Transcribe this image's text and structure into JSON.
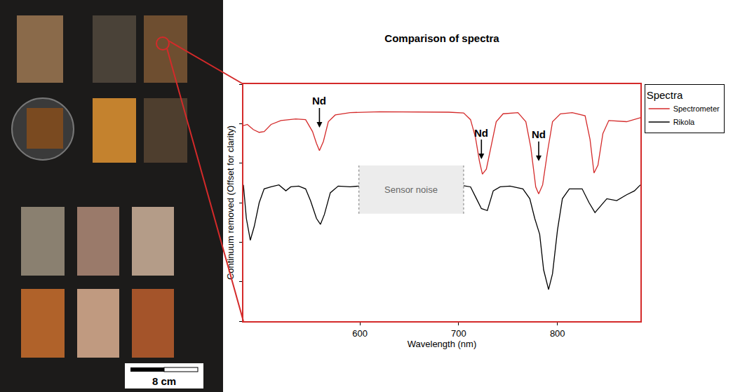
{
  "chart_data": {
    "type": "line",
    "title": "Comparison of spectra",
    "x_label": "Wavelength (nm)",
    "y_label": "Continuum removed (Offset for clarity)",
    "xlim": [
      482,
      884
    ],
    "xticks": [
      600,
      700,
      800
    ],
    "ylim": [
      0,
      6
    ],
    "yticks": [
      0,
      1,
      2,
      3,
      4,
      5,
      6
    ],
    "tick_labels": "x",
    "grid": false,
    "legend": "right",
    "legend_title": "Spectra",
    "series": [
      {
        "name": "Spectrometer",
        "color": "#d42a2a",
        "line_style": "solid",
        "x": [
          482,
          486,
          492,
          498,
          503,
          510,
          520,
          535,
          545,
          552,
          556,
          559,
          563,
          568,
          575,
          590,
          620,
          660,
          690,
          705,
          712,
          717,
          721,
          724,
          728,
          733,
          738,
          745,
          760,
          768,
          773,
          778,
          781,
          785,
          790,
          795,
          803,
          815,
          828,
          833,
          837,
          841,
          846,
          852,
          870,
          884
        ],
        "values": [
          4.95,
          4.98,
          4.85,
          4.78,
          4.8,
          4.98,
          5.08,
          5.12,
          5.1,
          4.8,
          4.5,
          4.32,
          4.55,
          5.05,
          5.22,
          5.28,
          5.3,
          5.3,
          5.29,
          5.27,
          5.1,
          4.65,
          4.05,
          3.72,
          3.85,
          4.45,
          5.05,
          5.25,
          5.28,
          5.05,
          4.4,
          3.4,
          3.22,
          3.45,
          4.3,
          5.05,
          5.25,
          5.28,
          5.2,
          4.6,
          3.75,
          3.95,
          4.75,
          5.08,
          5.05,
          5.15
        ]
      },
      {
        "name": "Rikola",
        "color": "#000000",
        "line_style": "solid",
        "x": [
          482,
          485,
          489,
          493,
          498,
          503,
          510,
          518,
          525,
          530,
          538,
          545,
          550,
          556,
          560,
          564,
          570,
          578,
          590,
          599,
          650,
          705,
          712,
          718,
          723,
          729,
          735,
          742,
          752,
          765,
          772,
          777,
          782,
          786,
          791,
          795,
          800,
          805,
          812,
          825,
          832,
          838,
          843,
          850,
          860,
          870,
          878,
          884
        ],
        "values": [
          3.45,
          2.6,
          2.05,
          2.4,
          3.0,
          3.35,
          3.4,
          3.45,
          3.3,
          3.4,
          3.42,
          3.35,
          3.05,
          2.6,
          2.45,
          2.7,
          3.25,
          3.42,
          3.4,
          3.42,
          null,
          3.43,
          3.4,
          3.1,
          2.85,
          2.8,
          3.3,
          3.4,
          3.42,
          3.35,
          3.1,
          2.6,
          2.2,
          1.3,
          0.8,
          1.2,
          2.3,
          3.1,
          3.35,
          3.35,
          3.0,
          2.75,
          2.9,
          3.1,
          3.05,
          3.2,
          3.3,
          3.45
        ]
      }
    ],
    "annotations": [
      {
        "text": "Nd",
        "x": 559,
        "y": 4.9
      },
      {
        "text": "Nd",
        "x": 723,
        "y": 4.1
      },
      {
        "text": "Nd",
        "x": 781,
        "y": 4.05
      }
    ],
    "regions": [
      {
        "text": "Sensor noise",
        "xlim": [
          599,
          705
        ],
        "ylim": [
          2.72,
          3.94
        ]
      }
    ]
  },
  "photo": {
    "scale_bar": "8 cm"
  }
}
